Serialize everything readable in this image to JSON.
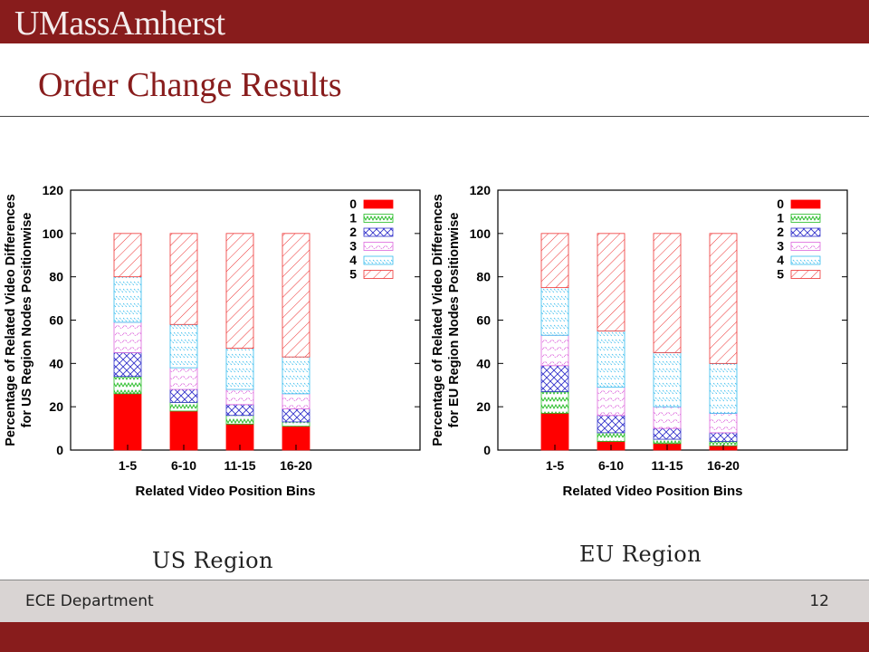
{
  "header": {
    "logo": "UMassAmherst"
  },
  "slide": {
    "title": "Order Change Results"
  },
  "footer": {
    "department": "ECE Department",
    "page_number": "12"
  },
  "colors": {
    "brand": "#881c1c",
    "footer_bg": "#d9d4d3"
  },
  "charts": [
    {
      "caption": "US Region"
    },
    {
      "caption": "EU Region"
    }
  ],
  "chart_data": [
    {
      "type": "bar",
      "stacked": true,
      "categories": [
        "1-5",
        "6-10",
        "11-15",
        "16-20"
      ],
      "xlabel": "Related Video Position Bins",
      "ylabel_lines": [
        "Percentage of Related Video Differences",
        "for US Region Nodes Positionwise"
      ],
      "ylim": [
        0,
        120
      ],
      "yticks": [
        0,
        20,
        40,
        60,
        80,
        100,
        120
      ],
      "legend_position": "top-right",
      "series": [
        {
          "name": "0",
          "color": "#ff0000",
          "values": [
            26,
            18,
            12,
            11
          ]
        },
        {
          "name": "1",
          "color": "#22bb22",
          "values": [
            8,
            4,
            4,
            2
          ]
        },
        {
          "name": "2",
          "color": "#3333cc",
          "values": [
            11,
            6,
            5,
            6
          ]
        },
        {
          "name": "3",
          "color": "#dd66dd",
          "values": [
            14,
            10,
            7,
            7
          ]
        },
        {
          "name": "4",
          "color": "#33bbee",
          "values": [
            21,
            20,
            19,
            17
          ]
        },
        {
          "name": "5",
          "color": "#ee3333",
          "values": [
            20,
            42,
            53,
            57
          ]
        }
      ]
    },
    {
      "type": "bar",
      "stacked": true,
      "categories": [
        "1-5",
        "6-10",
        "11-15",
        "16-20"
      ],
      "xlabel": "Related Video Position Bins",
      "ylabel_lines": [
        "Percentage of Related Video Differences",
        "for EU Region Nodes Positionwise"
      ],
      "ylim": [
        0,
        120
      ],
      "yticks": [
        0,
        20,
        40,
        60,
        80,
        100,
        120
      ],
      "legend_position": "top-right",
      "series": [
        {
          "name": "0",
          "color": "#ff0000",
          "values": [
            17,
            4,
            3,
            2
          ]
        },
        {
          "name": "1",
          "color": "#22bb22",
          "values": [
            10,
            4,
            2,
            2
          ]
        },
        {
          "name": "2",
          "color": "#3333cc",
          "values": [
            12,
            8,
            5,
            4
          ]
        },
        {
          "name": "3",
          "color": "#dd66dd",
          "values": [
            14,
            13,
            10,
            9
          ]
        },
        {
          "name": "4",
          "color": "#33bbee",
          "values": [
            22,
            26,
            25,
            23
          ]
        },
        {
          "name": "5",
          "color": "#ee3333",
          "values": [
            25,
            45,
            55,
            60
          ]
        }
      ]
    }
  ]
}
